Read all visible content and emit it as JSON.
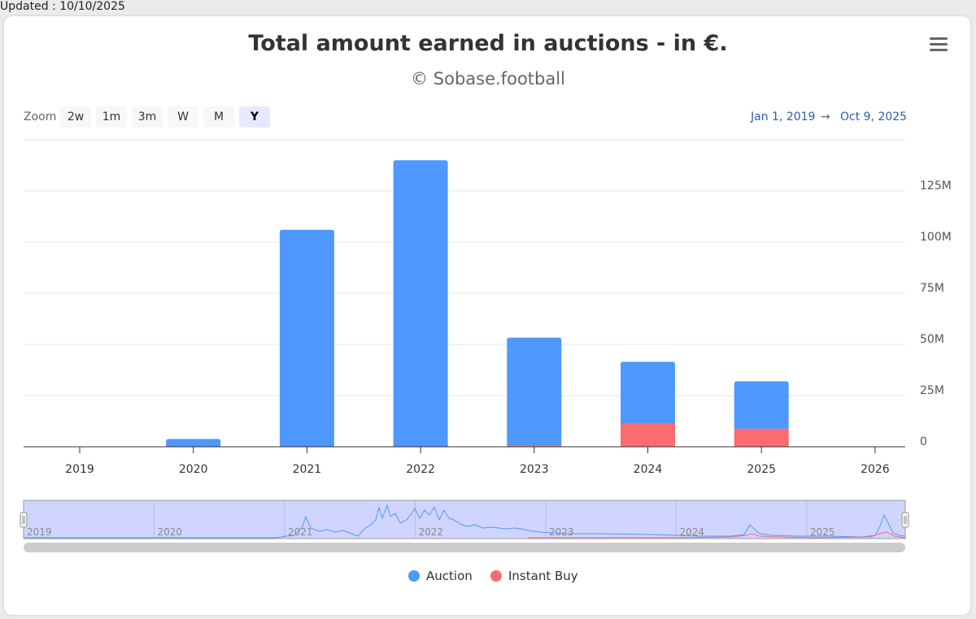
{
  "updated": "Updated : 10/10/2025",
  "title": "Total amount earned in auctions - in €.",
  "subtitle": "© Sobase.football",
  "menu_icon": "hamburger-menu-icon",
  "zoom": {
    "label": "Zoom",
    "buttons": [
      "2w",
      "1m",
      "3m",
      "W",
      "M",
      "Y"
    ],
    "active": "Y"
  },
  "range": {
    "from": "Jan 1, 2019",
    "arrow": "→",
    "to": "Oct 9, 2025"
  },
  "colors": {
    "auction": "#4f98fe",
    "instant": "#fb6b6f",
    "navigator_fill": "#d0d5ff"
  },
  "chart_data": {
    "type": "bar",
    "stacked": true,
    "title": "Total amount earned in auctions - in €.",
    "subtitle": "© Sobase.football",
    "x_ticks": [
      "2019",
      "2020",
      "2021",
      "2022",
      "2023",
      "2024",
      "2025",
      "2026"
    ],
    "categories": [
      "2019",
      "2020",
      "2021",
      "2022",
      "2023",
      "2024",
      "2025"
    ],
    "y_ticks": [
      "0",
      "25M",
      "50M",
      "75M",
      "100M",
      "125M"
    ],
    "y_tick_values": [
      0,
      25,
      50,
      75,
      100,
      125
    ],
    "ylim": [
      0,
      150
    ],
    "unit": "M€",
    "series": [
      {
        "name": "Instant Buy",
        "values": [
          0,
          0,
          0,
          0,
          0.8,
          11.5,
          8.8
        ]
      },
      {
        "name": "Auction",
        "values": [
          0,
          3.8,
          106,
          140,
          52.5,
          30,
          23.2
        ]
      }
    ],
    "navigator_years": [
      "2019",
      "2020",
      "2021",
      "2022",
      "2023",
      "2024",
      "2025"
    ],
    "legend": [
      "Auction",
      "Instant Buy"
    ]
  }
}
